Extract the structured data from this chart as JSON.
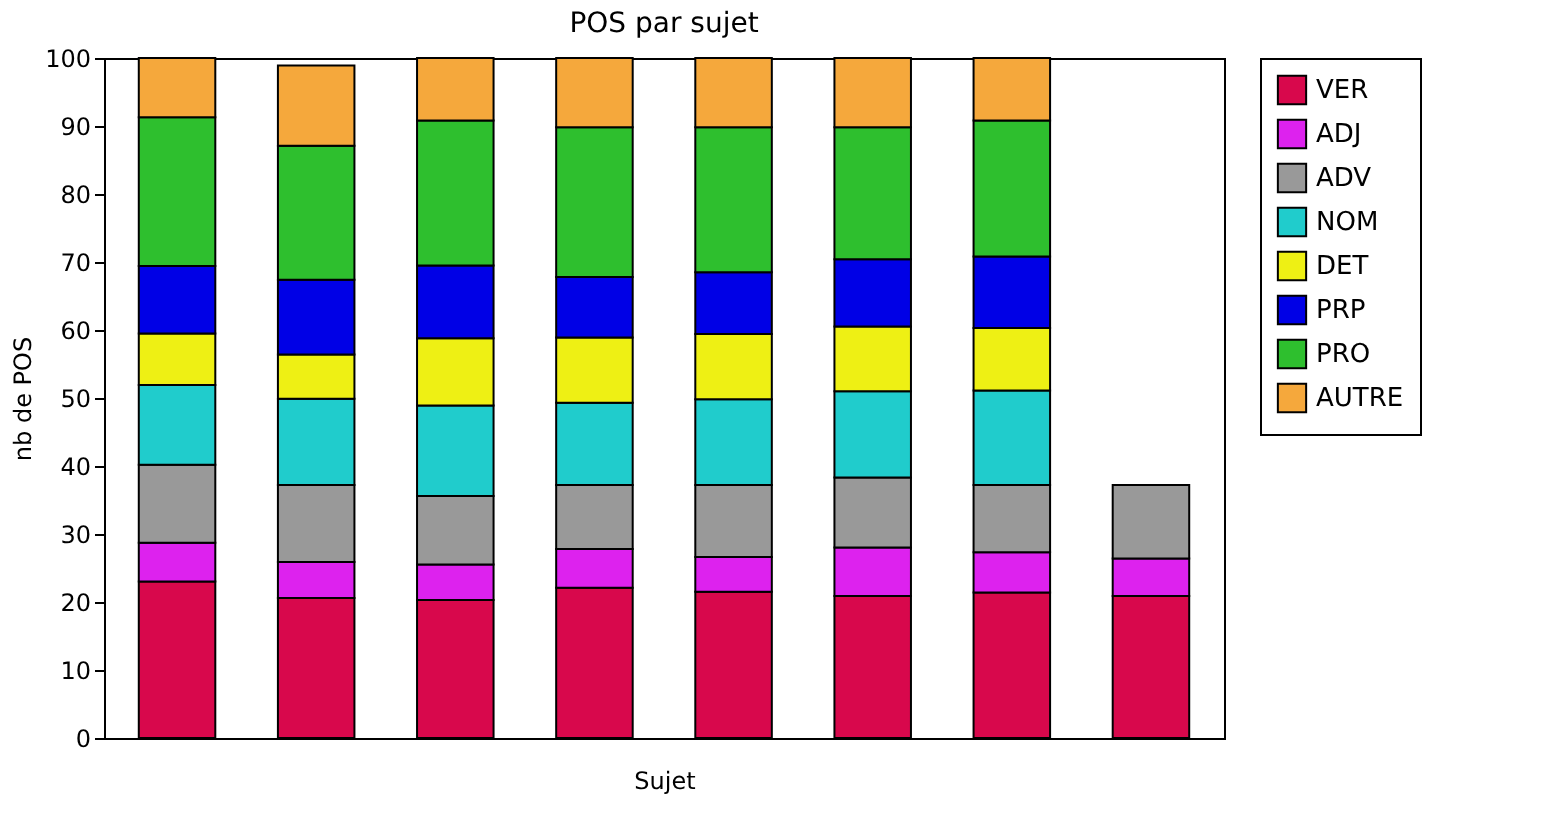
{
  "chart_data": {
    "type": "bar",
    "stacked": true,
    "title": "POS par sujet",
    "xlabel": "Sujet",
    "ylabel": "nb de POS",
    "categories": [
      null,
      null,
      null,
      null,
      null,
      null,
      null,
      null
    ],
    "ylim": [
      0,
      100
    ],
    "yticks": [
      0,
      10,
      20,
      30,
      40,
      50,
      60,
      70,
      80,
      90,
      100
    ],
    "grid": false,
    "legend": "top right",
    "series": [
      {
        "name": "VER",
        "color": "#d8084c",
        "values": [
          23.0,
          20.6,
          20.3,
          22.1,
          21.5,
          20.9,
          21.4,
          20.9
        ]
      },
      {
        "name": "ADJ",
        "color": "#dd22ee",
        "values": [
          5.7,
          5.3,
          5.2,
          5.7,
          5.1,
          7.1,
          5.9,
          5.5
        ]
      },
      {
        "name": "ADV",
        "color": "#999999",
        "values": [
          11.5,
          11.3,
          10.1,
          9.4,
          10.6,
          10.3,
          9.9,
          10.8
        ]
      },
      {
        "name": "NOM",
        "color": "#20cccc",
        "values": [
          11.7,
          12.7,
          13.3,
          12.1,
          12.6,
          12.7,
          13.9,
          null
        ]
      },
      {
        "name": "DET",
        "color": "#eef014",
        "values": [
          7.6,
          6.5,
          9.9,
          9.6,
          9.6,
          9.5,
          9.2,
          null
        ]
      },
      {
        "name": "PRP",
        "color": "#0000e6",
        "values": [
          9.9,
          11.0,
          10.7,
          8.9,
          9.1,
          9.9,
          10.5,
          null
        ]
      },
      {
        "name": "PRO",
        "color": "#2ebf2e",
        "values": [
          21.9,
          19.7,
          21.3,
          22.0,
          21.3,
          19.4,
          20.0,
          null
        ]
      },
      {
        "name": "AUTRE",
        "color": "#f5a83c",
        "values": [
          8.7,
          11.8,
          9.2,
          10.2,
          10.2,
          10.2,
          9.2,
          null
        ]
      }
    ]
  }
}
